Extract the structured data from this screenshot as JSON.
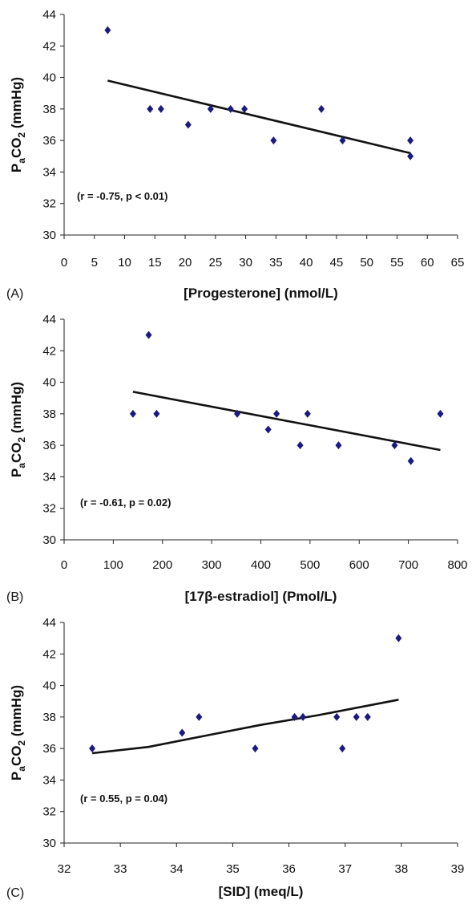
{
  "chart_data": [
    {
      "type": "scatter",
      "panel_label": "(A)",
      "xlabel": "[Progesterone] (nmol/L)",
      "ylabel_parts": [
        "P",
        "a",
        "CO",
        "2",
        " (mmHg)"
      ],
      "annotation": "(r = -0.75, p < 0.01)",
      "xlim": [
        0,
        65
      ],
      "ylim": [
        30,
        44
      ],
      "xticks": [
        0,
        5,
        10,
        15,
        20,
        25,
        30,
        35,
        40,
        45,
        50,
        55,
        60,
        65
      ],
      "yticks": [
        30,
        32,
        34,
        36,
        38,
        40,
        42,
        44
      ],
      "marker_color": "#1a1a80",
      "points": [
        [
          7.2,
          43
        ],
        [
          14.2,
          38
        ],
        [
          16,
          38
        ],
        [
          20.5,
          37
        ],
        [
          24.2,
          38
        ],
        [
          27.5,
          38
        ],
        [
          29.8,
          38
        ],
        [
          34.6,
          36
        ],
        [
          42.5,
          38
        ],
        [
          46,
          36
        ],
        [
          57.2,
          36
        ],
        [
          57.2,
          35
        ]
      ],
      "trendline": [
        [
          7.2,
          39.8
        ],
        [
          57.2,
          35.2
        ]
      ]
    },
    {
      "type": "scatter",
      "panel_label": "(B)",
      "xlabel": "[17β-estradiol] (Pmol/L)",
      "ylabel_parts": [
        "P",
        "a",
        "CO",
        "2",
        " (mmHg)"
      ],
      "annotation": "(r = -0.61, p = 0.02)",
      "xlim": [
        0,
        800
      ],
      "ylim": [
        30,
        44
      ],
      "xticks": [
        0,
        100,
        200,
        300,
        400,
        500,
        600,
        700,
        800
      ],
      "yticks": [
        30,
        32,
        34,
        36,
        38,
        40,
        42,
        44
      ],
      "marker_color": "#1a1a80",
      "points": [
        [
          140,
          38
        ],
        [
          172,
          43
        ],
        [
          188,
          38
        ],
        [
          352,
          38
        ],
        [
          415,
          37
        ],
        [
          432,
          38
        ],
        [
          480,
          36
        ],
        [
          495,
          38
        ],
        [
          558,
          36
        ],
        [
          672,
          36
        ],
        [
          705,
          35
        ],
        [
          765,
          38
        ]
      ],
      "trendline": [
        [
          140,
          39.4
        ],
        [
          765,
          35.7
        ]
      ]
    },
    {
      "type": "scatter",
      "panel_label": "(C)",
      "xlabel": "[SID] (meq/L)",
      "ylabel_parts": [
        "P",
        "a",
        "CO",
        "2",
        " (mmHg)"
      ],
      "annotation": "(r = 0.55, p = 0.04)",
      "xlim": [
        32,
        39
      ],
      "ylim": [
        30,
        44
      ],
      "xticks": [
        32,
        33,
        34,
        35,
        36,
        37,
        38,
        39
      ],
      "yticks": [
        30,
        32,
        34,
        36,
        38,
        40,
        42,
        44
      ],
      "marker_color": "#1a1a80",
      "points": [
        [
          32.5,
          36
        ],
        [
          34.1,
          37
        ],
        [
          34.4,
          38
        ],
        [
          35.4,
          36
        ],
        [
          36.1,
          38
        ],
        [
          36.25,
          38
        ],
        [
          36.85,
          38
        ],
        [
          36.95,
          36
        ],
        [
          37.2,
          38
        ],
        [
          37.4,
          38
        ],
        [
          37.95,
          43
        ]
      ],
      "trendline": [
        [
          32.5,
          35.7
        ],
        [
          33.5,
          36.1
        ],
        [
          34.5,
          36.8
        ],
        [
          35.5,
          37.5
        ],
        [
          36.5,
          38.1
        ],
        [
          37.95,
          39.1
        ]
      ]
    }
  ]
}
